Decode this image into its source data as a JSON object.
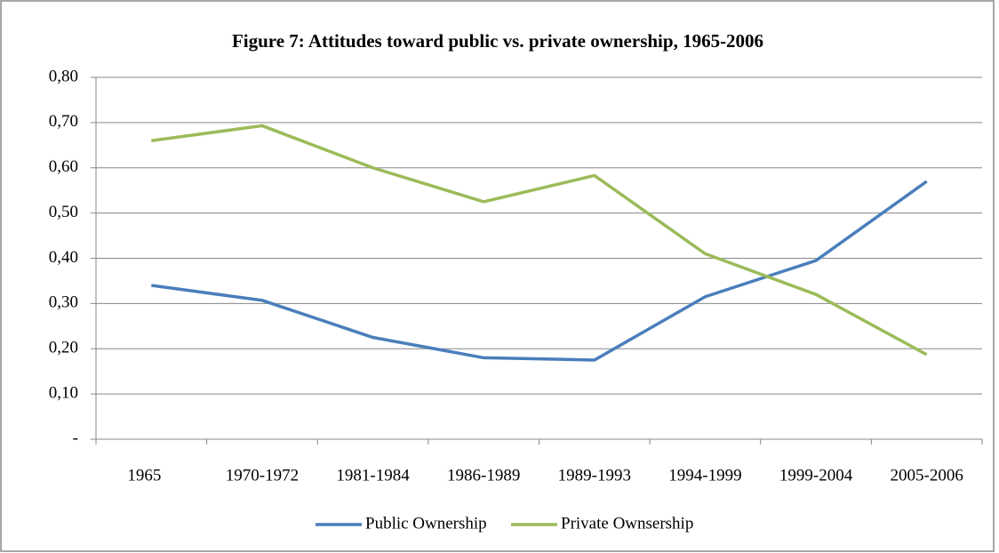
{
  "chart_data": {
    "type": "line",
    "title": "Figure 7: Attitudes toward public vs. private ownership, 1965-2006",
    "categories": [
      "1965",
      "1970-1972",
      "1981-1984",
      "1986-1989",
      "1989-1993",
      "1994-1999",
      "1999-2004",
      "2005-2006"
    ],
    "series": [
      {
        "name": "Public Ownership",
        "color": "#4a7ebb",
        "values": [
          0.34,
          0.307,
          0.225,
          0.18,
          0.175,
          0.315,
          0.395,
          0.57
        ]
      },
      {
        "name": "Private Ownsership",
        "color": "#9bbb59",
        "values": [
          0.66,
          0.693,
          0.6,
          0.525,
          0.583,
          0.41,
          0.32,
          0.187
        ]
      }
    ],
    "ylim": [
      0,
      0.8
    ],
    "yticks": [
      {
        "value": 0,
        "label": "-"
      },
      {
        "value": 0.1,
        "label": "0,10"
      },
      {
        "value": 0.2,
        "label": "0,20"
      },
      {
        "value": 0.3,
        "label": "0,30"
      },
      {
        "value": 0.4,
        "label": "0,40"
      },
      {
        "value": 0.5,
        "label": "0,50"
      },
      {
        "value": 0.6,
        "label": "0,60"
      },
      {
        "value": 0.7,
        "label": "0,70"
      },
      {
        "value": 0.8,
        "label": "0,80"
      }
    ],
    "grid": true,
    "legend": "bottom"
  }
}
